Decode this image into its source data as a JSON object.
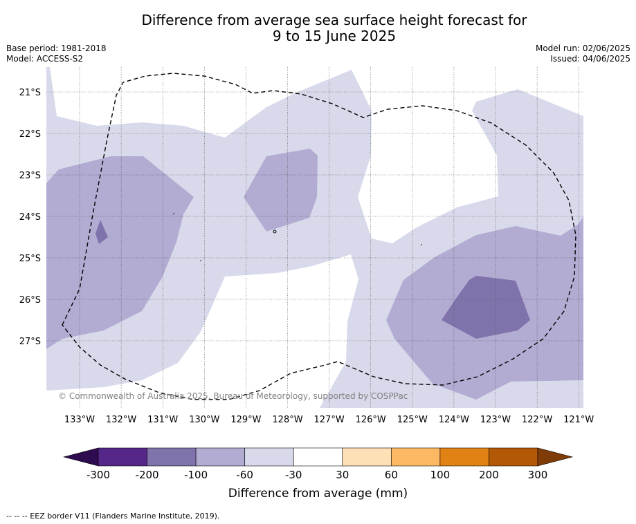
{
  "header": {
    "title_line1": "Difference from average sea surface height forecast for",
    "title_line2": "9 to 15 June 2025",
    "base_period": "Base period: 1981-2018",
    "model": "Model: ACCESS-S2",
    "model_run": "Model run: 02/06/2025",
    "issued": "Issued: 04/06/2025"
  },
  "map": {
    "copyright": "© Commonwealth of Australia 2025, Bureau of Meteorology, supported by COSPPac",
    "lat_labels": [
      "21°S",
      "22°S",
      "23°S",
      "24°S",
      "25°S",
      "26°S",
      "27°S"
    ],
    "lon_labels": [
      "133°W",
      "132°W",
      "131°W",
      "130°W",
      "129°W",
      "128°W",
      "127°W",
      "126°W",
      "125°W",
      "124°W",
      "123°W",
      "122°W",
      "121°W"
    ],
    "eez_border_style": "dashed black"
  },
  "colorbar": {
    "tick_labels": [
      "-300",
      "-200",
      "-100",
      "-60",
      "-30",
      "30",
      "60",
      "100",
      "200",
      "300"
    ],
    "label": "Difference from average (mm)",
    "low_extend_color": "#2e0c4f",
    "high_extend_color": "#7f3b08",
    "colors": [
      "#542788",
      "#8073ac",
      "#b2abd2",
      "#d8daeb",
      "#ffffff",
      "#fee0b6",
      "#fdb863",
      "#e08214",
      "#b35806"
    ]
  },
  "footer": {
    "legend": "--  --  -- EEZ border V11 (Flanders Marine Institute, 2019)."
  }
}
